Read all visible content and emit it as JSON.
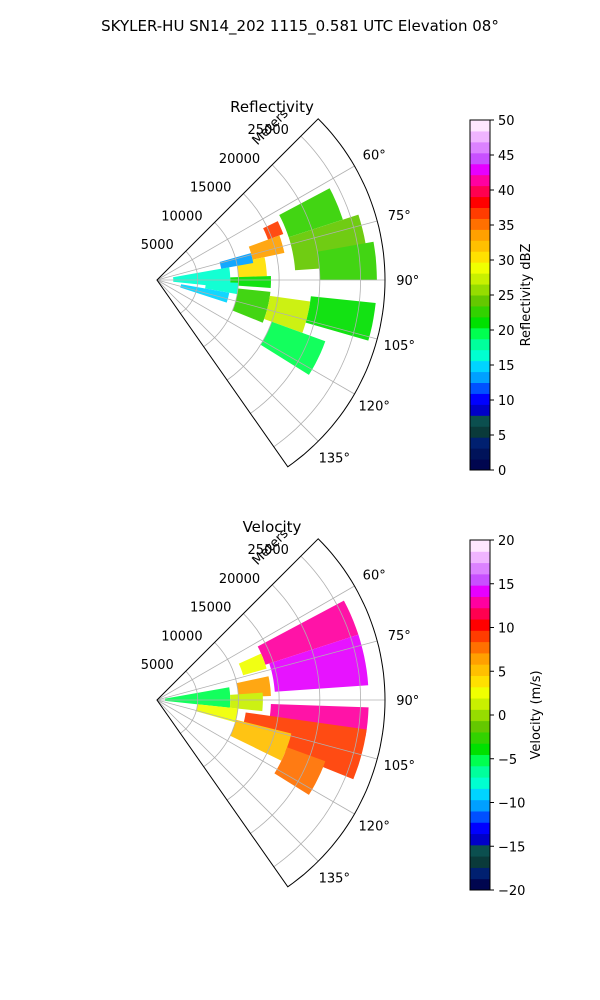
{
  "figure": {
    "suptitle": "SKYLER-HU  SN14_202  1115_0.581 UTC Elevation 08°"
  },
  "chart_data": [
    {
      "type": "heatmap",
      "title": "Reflectivity",
      "projection": "polar-sector",
      "theta_ticks_deg": [
        "60°",
        "75°",
        "90°",
        "105°",
        "120°",
        "135°"
      ],
      "theta_range_deg": [
        45,
        145
      ],
      "range_label": "Meters",
      "range_ticks": [
        "5000",
        "10000",
        "15000",
        "20000",
        "25000"
      ],
      "range_max_m": 28000,
      "grid": true,
      "colorbar": {
        "label": "Reflectivity dBZ",
        "min": 0,
        "max": 50,
        "ticks": [
          "0",
          "5",
          "10",
          "15",
          "20",
          "25",
          "30",
          "35",
          "40",
          "45",
          "50"
        ],
        "colormap": "NWS reflectivity",
        "colors": [
          "#00064f",
          "#00135a",
          "#002070",
          "#0a3a3a",
          "#0b4f4f",
          "#0000c8",
          "#0000ff",
          "#0050ff",
          "#00a0ff",
          "#00d4ff",
          "#00ffd0",
          "#00ff9c",
          "#00ff50",
          "#00e000",
          "#32d200",
          "#64c800",
          "#96dc00",
          "#c8f000",
          "#f0ff00",
          "#ffe000",
          "#ffc000",
          "#ffa000",
          "#ff7000",
          "#ff3c00",
          "#ff0000",
          "#ff0050",
          "#ff00a0",
          "#e600ff",
          "#c850ff",
          "#dc82ff",
          "#f0b4ff",
          "#ffe6ff"
        ]
      },
      "cells": [
        {
          "az": [
            62,
            72
          ],
          "r": [
            17000,
            24000
          ],
          "value": 22
        },
        {
          "az": [
            64,
            70
          ],
          "r": [
            14500,
            16500
          ],
          "value": 36
        },
        {
          "az": [
            70,
            78
          ],
          "r": [
            12000,
            16000
          ],
          "value": 33
        },
        {
          "az": [
            78,
            88
          ],
          "r": [
            10000,
            13500
          ],
          "value": 30
        },
        {
          "az": [
            72,
            86
          ],
          "r": [
            17000,
            26000
          ],
          "value": 24
        },
        {
          "az": [
            80,
            90
          ],
          "r": [
            20000,
            27000
          ],
          "value": 22
        },
        {
          "az": [
            80,
            96
          ],
          "r": [
            2000,
            9000
          ],
          "value": 17
        },
        {
          "az": [
            88,
            94
          ],
          "r": [
            9000,
            14000
          ],
          "value": 21
        },
        {
          "az": [
            92,
            100
          ],
          "r": [
            6000,
            10000
          ],
          "value": 16
        },
        {
          "az": [
            96,
            112
          ],
          "r": [
            10000,
            14000
          ],
          "value": 22
        },
        {
          "az": [
            98,
            110
          ],
          "r": [
            14000,
            19000
          ],
          "value": 28
        },
        {
          "az": [
            96,
            106
          ],
          "r": [
            19000,
            27000
          ],
          "value": 21
        },
        {
          "az": [
            110,
            122
          ],
          "r": [
            15000,
            22000
          ],
          "value": 20
        },
        {
          "az": [
            74,
            80
          ],
          "r": [
            8000,
            12000
          ],
          "value": 14
        },
        {
          "az": [
            100,
            108
          ],
          "r": [
            3000,
            9000
          ],
          "value": 15
        }
      ]
    },
    {
      "type": "heatmap",
      "title": "Velocity",
      "projection": "polar-sector",
      "theta_ticks_deg": [
        "60°",
        "75°",
        "90°",
        "105°",
        "120°",
        "135°"
      ],
      "theta_range_deg": [
        45,
        145
      ],
      "range_label": "Meters",
      "range_ticks": [
        "5000",
        "10000",
        "15000",
        "20000",
        "25000"
      ],
      "range_max_m": 28000,
      "grid": true,
      "colorbar": {
        "label": "Velocity (m/s)",
        "min": -20,
        "max": 20,
        "ticks": [
          "−20",
          "−15",
          "−10",
          "−5",
          "0",
          "5",
          "10",
          "15",
          "20"
        ],
        "colormap": "NWS velocity",
        "colors": [
          "#00064f",
          "#002070",
          "#0a3a3a",
          "#0b4f4f",
          "#0000c8",
          "#0000ff",
          "#0050ff",
          "#00a0ff",
          "#00d4ff",
          "#00ffd0",
          "#00ff9c",
          "#00ff50",
          "#00e000",
          "#32d200",
          "#64c800",
          "#96dc00",
          "#c8f000",
          "#f0ff00",
          "#ffe000",
          "#ffc000",
          "#ffa000",
          "#ff7000",
          "#ff3c00",
          "#ff0000",
          "#ff0050",
          "#ff00a0",
          "#e600ff",
          "#c850ff",
          "#dc82ff",
          "#f0b4ff",
          "#ffe6ff"
        ]
      },
      "cells": [
        {
          "az": [
            62,
            72
          ],
          "r": [
            14000,
            26000
          ],
          "value": 13
        },
        {
          "az": [
            66,
            74
          ],
          "r": [
            11000,
            14000
          ],
          "value": 2
        },
        {
          "az": [
            72,
            86
          ],
          "r": [
            14500,
            26000
          ],
          "value": 14
        },
        {
          "az": [
            78,
            88
          ],
          "r": [
            10000,
            14000
          ],
          "value": 6
        },
        {
          "az": [
            80,
            96
          ],
          "r": [
            1000,
            9000
          ],
          "value": -5
        },
        {
          "az": [
            86,
            96
          ],
          "r": [
            9000,
            13000
          ],
          "value": 1
        },
        {
          "az": [
            92,
            100
          ],
          "r": [
            14000,
            26000
          ],
          "value": 13
        },
        {
          "az": [
            98,
            112
          ],
          "r": [
            11000,
            26000
          ],
          "value": 9
        },
        {
          "az": [
            104,
            116
          ],
          "r": [
            10000,
            17000
          ],
          "value": 5
        },
        {
          "az": [
            110,
            122
          ],
          "r": [
            17000,
            22000
          ],
          "value": 8
        },
        {
          "az": [
            96,
            106
          ],
          "r": [
            5000,
            10000
          ],
          "value": 2
        }
      ]
    }
  ]
}
